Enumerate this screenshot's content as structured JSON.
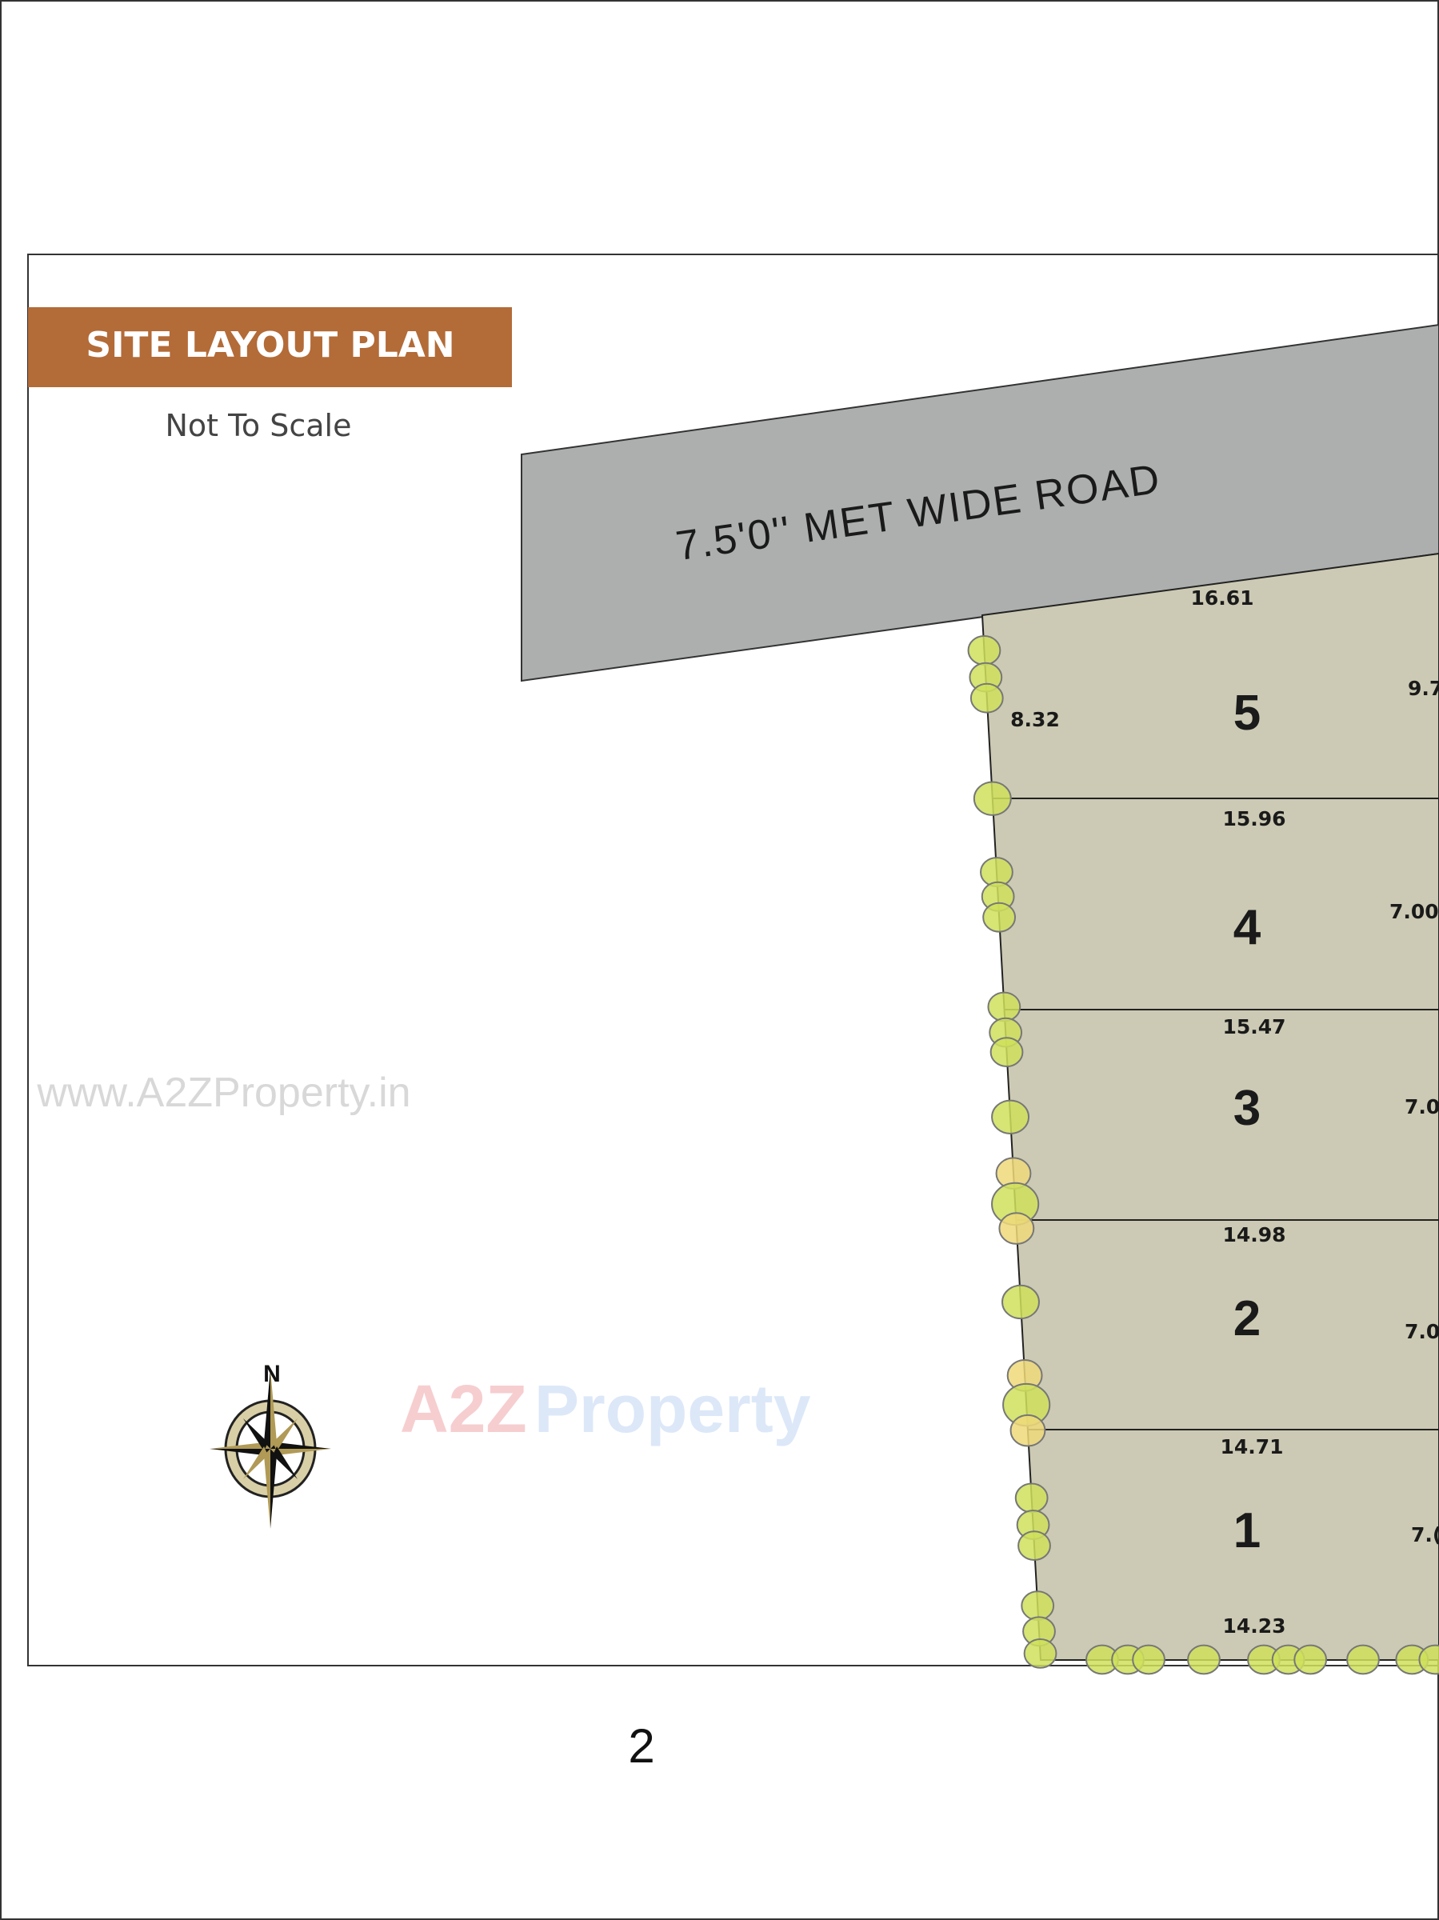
{
  "title": "SITE LAYOUT PLAN",
  "subtitle": "Not To Scale",
  "road_label": "7.5'0'' MET WIDE ROAD",
  "watermark": "www.A2ZProperty.in",
  "logo": {
    "text_a2z": "A2Z",
    "text_property": "Property"
  },
  "compass": {
    "north_label": "N"
  },
  "page_number": "2",
  "colors": {
    "banner": "#b36b38",
    "road": "#adafaf",
    "plots": "#cccab4",
    "trees": "#cfe05a",
    "trees_yellow": "#eed97a"
  },
  "plots": [
    {
      "number": "5",
      "top_width": "16.61",
      "left_depth": "8.32",
      "right_depth": "9.7"
    },
    {
      "number": "4",
      "top_width": "15.96",
      "right_depth": "7.00"
    },
    {
      "number": "3",
      "top_width": "15.47",
      "right_depth": "7.0"
    },
    {
      "number": "2",
      "top_width": "14.98",
      "right_depth": "7.0"
    },
    {
      "number": "1",
      "top_width": "14.71",
      "right_depth": "7.(",
      "bottom_width": "14.23"
    }
  ]
}
